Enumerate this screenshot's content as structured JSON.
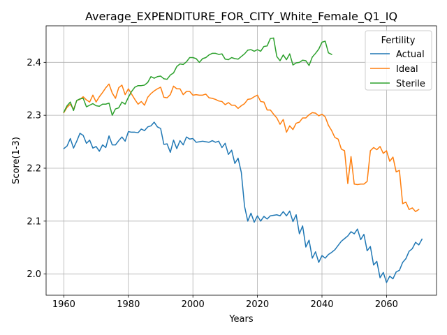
{
  "chart_data": {
    "type": "line",
    "title": "Average_EXPENDITURE_FOR_CITY_White_Female_Q1_IQ",
    "xlabel": "Years",
    "ylabel": "Score(1-3)",
    "xlim": [
      1954.5,
      2075.5
    ],
    "ylim": [
      1.96,
      2.469
    ],
    "xticks": [
      1960,
      1980,
      2000,
      2020,
      2040,
      2060
    ],
    "yticks": [
      2.0,
      2.1,
      2.2,
      2.3,
      2.4
    ],
    "ytick_labels": [
      "2.0",
      "2.1",
      "2.2",
      "2.3",
      "2.4"
    ],
    "grid": true,
    "legend": {
      "title": "Fertility",
      "placement": "top-right"
    },
    "series": [
      {
        "name": "Actual",
        "color": "#1f77b4",
        "x_start": 1960,
        "values": [
          2.237,
          2.242,
          2.256,
          2.238,
          2.251,
          2.266,
          2.262,
          2.247,
          2.253,
          2.238,
          2.241,
          2.232,
          2.244,
          2.239,
          2.261,
          2.244,
          2.244,
          2.252,
          2.259,
          2.251,
          2.269,
          2.268,
          2.268,
          2.267,
          2.274,
          2.271,
          2.278,
          2.28,
          2.287,
          2.278,
          2.275,
          2.245,
          2.246,
          2.23,
          2.253,
          2.237,
          2.252,
          2.244,
          2.259,
          2.255,
          2.256,
          2.249,
          2.25,
          2.251,
          2.25,
          2.249,
          2.252,
          2.249,
          2.251,
          2.239,
          2.247,
          2.226,
          2.234,
          2.209,
          2.219,
          2.192,
          2.128,
          2.1,
          2.115,
          2.098,
          2.11,
          2.1,
          2.109,
          2.104,
          2.11,
          2.111,
          2.112,
          2.11,
          2.118,
          2.11,
          2.119,
          2.099,
          2.112,
          2.076,
          2.091,
          2.051,
          2.064,
          2.03,
          2.042,
          2.022,
          2.035,
          2.03,
          2.037,
          2.041,
          2.046,
          2.054,
          2.062,
          2.067,
          2.072,
          2.08,
          2.076,
          2.085,
          2.065,
          2.075,
          2.044,
          2.052,
          2.017,
          2.024,
          1.993,
          2.003,
          1.984,
          1.996,
          1.991,
          2.004,
          2.007,
          2.022,
          2.029,
          2.043,
          2.048,
          2.06,
          2.055,
          2.066
        ]
      },
      {
        "name": "Ideal",
        "color": "#ff7f0e",
        "x_start": 1960,
        "values": [
          2.305,
          2.315,
          2.321,
          2.311,
          2.328,
          2.33,
          2.335,
          2.329,
          2.325,
          2.338,
          2.325,
          2.335,
          2.343,
          2.352,
          2.359,
          2.342,
          2.332,
          2.352,
          2.357,
          2.339,
          2.35,
          2.34,
          2.33,
          2.321,
          2.326,
          2.319,
          2.334,
          2.341,
          2.346,
          2.35,
          2.353,
          2.334,
          2.333,
          2.339,
          2.355,
          2.35,
          2.35,
          2.339,
          2.345,
          2.345,
          2.338,
          2.339,
          2.338,
          2.338,
          2.34,
          2.333,
          2.332,
          2.33,
          2.327,
          2.326,
          2.32,
          2.324,
          2.319,
          2.319,
          2.313,
          2.318,
          2.322,
          2.33,
          2.331,
          2.335,
          2.338,
          2.326,
          2.325,
          2.31,
          2.31,
          2.302,
          2.295,
          2.283,
          2.292,
          2.268,
          2.28,
          2.273,
          2.285,
          2.287,
          2.295,
          2.295,
          2.301,
          2.305,
          2.304,
          2.299,
          2.302,
          2.297,
          2.281,
          2.271,
          2.258,
          2.255,
          2.236,
          2.233,
          2.171,
          2.222,
          2.17,
          2.169,
          2.17,
          2.17,
          2.175,
          2.233,
          2.239,
          2.235,
          2.241,
          2.228,
          2.233,
          2.213,
          2.221,
          2.193,
          2.196,
          2.133,
          2.136,
          2.122,
          2.125,
          2.118,
          2.122
        ]
      },
      {
        "name": "Sterile",
        "color": "#2ca02c",
        "x_start": 1960,
        "values": [
          2.306,
          2.318,
          2.325,
          2.309,
          2.328,
          2.331,
          2.332,
          2.316,
          2.319,
          2.322,
          2.318,
          2.317,
          2.321,
          2.321,
          2.323,
          2.3,
          2.312,
          2.314,
          2.325,
          2.321,
          2.334,
          2.345,
          2.353,
          2.356,
          2.356,
          2.357,
          2.362,
          2.373,
          2.37,
          2.373,
          2.374,
          2.369,
          2.368,
          2.376,
          2.38,
          2.392,
          2.397,
          2.396,
          2.401,
          2.409,
          2.409,
          2.407,
          2.4,
          2.407,
          2.409,
          2.414,
          2.417,
          2.417,
          2.415,
          2.416,
          2.406,
          2.405,
          2.409,
          2.407,
          2.406,
          2.411,
          2.416,
          2.423,
          2.424,
          2.421,
          2.424,
          2.421,
          2.43,
          2.431,
          2.445,
          2.446,
          2.411,
          2.403,
          2.414,
          2.405,
          2.416,
          2.395,
          2.399,
          2.4,
          2.404,
          2.403,
          2.394,
          2.41,
          2.417,
          2.425,
          2.438,
          2.44,
          2.418,
          2.415
        ]
      }
    ]
  }
}
